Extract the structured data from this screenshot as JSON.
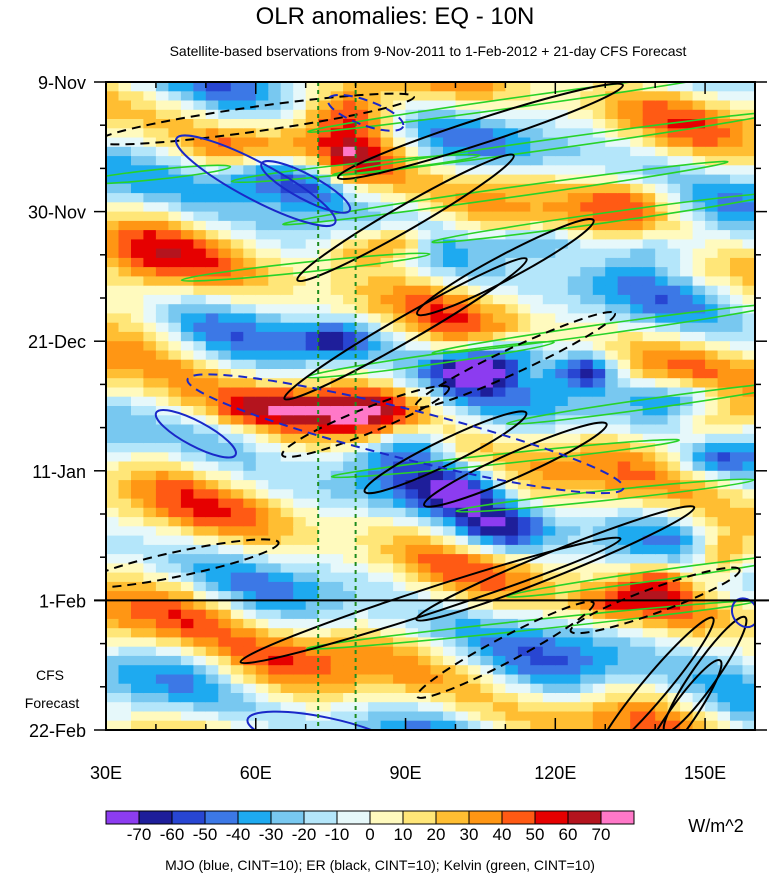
{
  "chart_data": {
    "type": "heatmap",
    "title": "OLR anomalies: EQ - 10N",
    "subtitle": "Satellite-based bservations from 9-Nov-2011 to 1-Feb-2012 + 21-day CFS Forecast",
    "x_ticks": [
      {
        "value": 30,
        "label": "30E"
      },
      {
        "value": 60,
        "label": "60E"
      },
      {
        "value": 90,
        "label": "90E"
      },
      {
        "value": 120,
        "label": "120E"
      },
      {
        "value": 150,
        "label": "150E"
      }
    ],
    "xlim": [
      30,
      160
    ],
    "y_ticks": [
      {
        "value": 0,
        "label": "9-Nov"
      },
      {
        "value": 21,
        "label": "30-Nov"
      },
      {
        "value": 42,
        "label": "21-Dec"
      },
      {
        "value": 63,
        "label": "11-Jan"
      },
      {
        "value": 84,
        "label": "1-Feb"
      },
      {
        "value": 105,
        "label": "22-Feb"
      }
    ],
    "ylim_days": [
      0,
      105
    ],
    "forecast_start_day": 84,
    "forecast_label": [
      "CFS",
      "Forecast"
    ],
    "reference_longitudes": [
      72.5,
      80
    ],
    "colorbar": {
      "levels": [
        -70,
        -60,
        -50,
        -40,
        -30,
        -20,
        -10,
        0,
        10,
        20,
        30,
        40,
        50,
        60,
        70
      ],
      "tick_labels": [
        "-70",
        "-60",
        "-50",
        "-40",
        "-30",
        "-20",
        "-10",
        "0",
        "10",
        "20",
        "30",
        "40",
        "50",
        "60",
        "70"
      ],
      "colors": [
        "#8c3cf0",
        "#1e1e9a",
        "#2846d2",
        "#3c78e6",
        "#1eaaf0",
        "#78c8f0",
        "#b4e6fa",
        "#e6f8fa",
        "#fffabe",
        "#ffe678",
        "#ffbe32",
        "#ff9614",
        "#ff5a14",
        "#e60000",
        "#b4141e",
        "#ff78c8"
      ],
      "units": "W/m^2"
    },
    "contour_legend": "MJO (blue, CINT=10); ER (black, CINT=10); Kelvin (green, CINT=10)",
    "contour_colors": {
      "mjo": "#1a28c8",
      "er": "#000000",
      "kelvin": "#28d228"
    }
  }
}
